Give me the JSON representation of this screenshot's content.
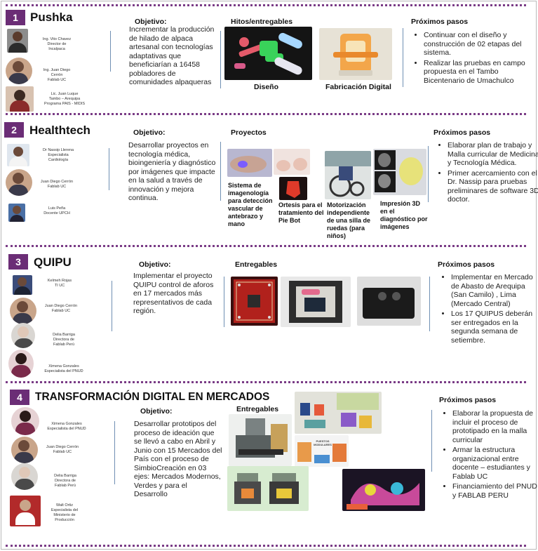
{
  "sections": [
    {
      "number": "1",
      "title": "Pushka",
      "people": [
        {
          "name": "Ing. Vito Chavez\nDirector de\nIncalpaca"
        },
        {
          "name": "Ing. Juan Diego\nCerrón\nFablab UC"
        },
        {
          "name": "Lic. Juan Luque\nTambo – Arequipa\nPrograma PAIS - MIDIS"
        }
      ],
      "objective_label": "Objetivo:",
      "objective_text": "Incrementar la producción de hilado de alpaca artesanal con tecnologías adaptativas que beneficiarían a 16458 pobladores de comunidades alpaqueras",
      "deliverables_label": "Hitos/entregables",
      "captions": [
        "Diseño",
        "Fabricación Digital"
      ],
      "next_label": "Próximos pasos",
      "next_items": [
        "Continuar con el diseño y construcción de 02 etapas del sistema.",
        "Realizar las pruebas en campo propuesta en el Tambo Bicentenario de Umachulco"
      ]
    },
    {
      "number": "2",
      "title": "Healthtech",
      "people": [
        {
          "name": "Dr Nassip Llerena\nEspecialista\nCardiología"
        },
        {
          "name": "Juan Diego Cerrón\nFablab UC"
        },
        {
          "name": "Luis Peña\nDocente UPCH"
        }
      ],
      "objective_label": "Objetivo:",
      "objective_text": "Desarrollar proyectos en tecnología médica, bioingeniería y diagnóstico por imágenes que impacte en la salud a través de innovación y mejora continua.",
      "deliverables_label": "Proyectos",
      "captions": [
        "Sistema de imagenología para detección vascular de antebrazo y mano",
        "Ortesis para el tratamiento del Pie Bot",
        "Motorización independiente de una silla de ruedas (para niños)",
        "Impresión 3D en el diagnóstico por imágenes"
      ],
      "next_label": "Próximos pasos",
      "next_items": [
        "Elaborar plan de trabajo y Malla curricular de Medicina y Tecnología Médica.",
        "Primer acercamiento con el Dr. Nassip para pruebas preliminares de software 3D doctor."
      ]
    },
    {
      "number": "3",
      "title": "QUIPU",
      "people": [
        {
          "name": "Kelmeh Rojas\nTI UC"
        },
        {
          "name": "Juan Diego Cerrón\nFablab UC"
        },
        {
          "name": "Delia Barriga\nDirectora de\nFablab Perú"
        },
        {
          "name": "Ximena Gonzales\nEspecialista del PNUD"
        }
      ],
      "objective_label": "Objetivo:",
      "objective_text": "Implementar el proyecto QUIPU control de aforos en 17 mercados más representativos de cada región.",
      "deliverables_label": "Entregables",
      "next_label": "Próximos pasos",
      "next_items": [
        "Implementar en Mercado de Abasto de Arequipa (San Camilo) , Lima (Mercado Central)",
        "Los 17 QUIPUS deberán ser entregados en la segunda semana de setiembre."
      ]
    },
    {
      "number": "4",
      "title": "TRANSFORMACIÓN DIGITAL EN MERCADOS",
      "people": [
        {
          "name": "Ximena Gonzales\nEspecialista del PNUD"
        },
        {
          "name": "Juan Diego Cerrón\nFablab UC"
        },
        {
          "name": "Delia Barriga\nDirectora de\nFablab Perú"
        },
        {
          "name": "Walt Ortiz\nEspecialista del\nMinisterio de\nProducción"
        }
      ],
      "objective_label": "Objetivo:",
      "objective_text": "Desarrollar prototipos del proceso de ideación que se llevó a cabo en Abril y Junio con 15 Mercados del País con el proceso de SimbioCreación en 03 ejes: Mercados Modernos, Verdes y para el Desarrollo",
      "deliverables_label": "Entregables",
      "poster_text": "PUESTOS MODULARES",
      "next_label": "Próximos pasos",
      "next_items": [
        "Elaborar la propuesta de incluir el proceso de prototipado en la malla curricular",
        "Armar la estructura organizacional entre docente – estudiantes y Fablab UC",
        "Financiamiento del PNUD y FABLAB PERU"
      ]
    }
  ],
  "colors": {
    "accent": "#6b2d76",
    "line": "#6f8fb3",
    "dots": "#7a3c86"
  }
}
